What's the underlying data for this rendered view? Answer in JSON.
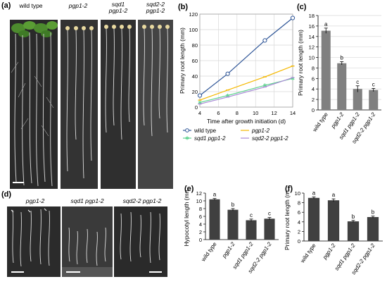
{
  "panels": {
    "a": {
      "letter": "(a)",
      "labels": [
        "wild type",
        "pgp1-2",
        "sqd1\npgp1-2",
        "sqd2-2\npgp1-2"
      ]
    },
    "d": {
      "letter": "(d)",
      "labels": [
        "pgp1-2",
        "sqd1 pgp1-2",
        "sqd2-2 pgp1-2"
      ]
    },
    "b": {
      "letter": "(b)"
    },
    "c": {
      "letter": "(c)"
    },
    "e": {
      "letter": "(e)"
    },
    "f": {
      "letter": "(f)"
    }
  },
  "chart_data": [
    {
      "id": "b",
      "type": "line",
      "xlabel": "Time after growth initiation (d)",
      "ylabel": "Primary root length (mm)",
      "xlim": [
        4,
        14
      ],
      "ylim": [
        0,
        120
      ],
      "xticks": [
        4,
        6,
        8,
        10,
        12,
        14
      ],
      "yticks": [
        0,
        20,
        40,
        60,
        80,
        100,
        120
      ],
      "x": [
        4,
        7,
        11,
        14
      ],
      "series": [
        {
          "name": "wild type",
          "values": [
            15,
            43,
            86,
            115
          ],
          "color": "#2e5597",
          "marker": "circle"
        },
        {
          "name": "pgp1-2",
          "values": [
            9,
            22,
            39,
            53
          ],
          "color": "#f5b800",
          "marker": "dash"
        },
        {
          "name": "sqd1 pgp1-2",
          "values": [
            6,
            15,
            28,
            37
          ],
          "color": "#5fd38f",
          "marker": "star"
        },
        {
          "name": "sqd2-2 pgp1-2",
          "values": [
            4,
            13,
            26,
            38
          ],
          "color": "#a989d6",
          "marker": "dash"
        }
      ],
      "legend": "bottom"
    },
    {
      "id": "c",
      "type": "bar",
      "ylabel": "Primary root length (mm)",
      "ylim": [
        0,
        18
      ],
      "yticks": [
        0,
        2,
        4,
        6,
        8,
        10,
        12,
        14,
        16,
        18
      ],
      "categories": [
        "wild type",
        "pgp1-2",
        "sqd1 pgp1-2",
        "sqd2-2 pgp1-2"
      ],
      "values": [
        15.1,
        8.9,
        4.0,
        3.8
      ],
      "errors": [
        0.5,
        0.3,
        0.6,
        0.3
      ],
      "letters": [
        "a",
        "b",
        "c",
        "c"
      ],
      "color": "#808080"
    },
    {
      "id": "e",
      "type": "bar",
      "ylabel": "Hypocotyl length (mm)",
      "ylim": [
        0,
        12
      ],
      "yticks": [
        0,
        2,
        4,
        6,
        8,
        10,
        12
      ],
      "categories": [
        "wild type",
        "pgp1-2",
        "sqd1 pgp1-2",
        "sqd2-2 pgp1-2"
      ],
      "values": [
        10.4,
        7.7,
        5.0,
        5.4
      ],
      "errors": [
        0.2,
        0.3,
        0.3,
        0.3
      ],
      "letters": [
        "a",
        "b",
        "c",
        "c"
      ],
      "color": "#404040"
    },
    {
      "id": "f",
      "type": "bar",
      "ylabel": "Primary root length (mm)",
      "ylim": [
        0,
        10
      ],
      "yticks": [
        0,
        2,
        4,
        6,
        8,
        10
      ],
      "categories": [
        "wild type",
        "pgp1-2",
        "sqd1 pgp1-2",
        "sqd2-2 pgp1-2"
      ],
      "values": [
        9.0,
        8.5,
        4.1,
        5.0
      ],
      "errors": [
        0.2,
        0.3,
        0.2,
        0.2
      ],
      "letters": [
        "a",
        "a",
        "b",
        "b"
      ],
      "color": "#404040"
    }
  ]
}
